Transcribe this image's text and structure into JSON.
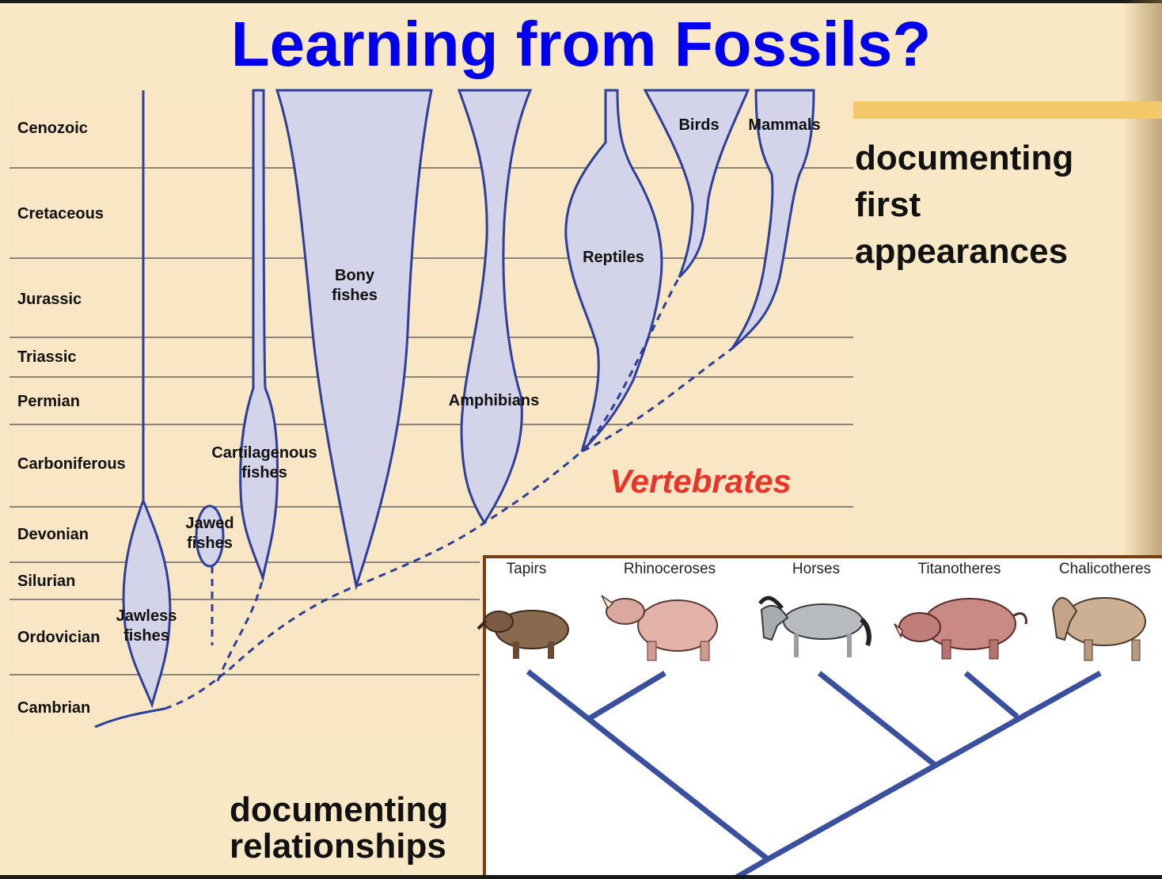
{
  "title": "Learning from Fossils?",
  "captions": {
    "first_appearances": "documenting first appearances",
    "relationships": "documenting relationships"
  },
  "vertebrates_label": "Vertebrates",
  "periods": [
    "Cenozoic",
    "Cretaceous",
    "Jurassic",
    "Triassic",
    "Permian",
    "Carboniferous",
    "Devonian",
    "Silurian",
    "Ordovician",
    "Cambrian"
  ],
  "groups": {
    "jawless": "Jawless fishes",
    "jawed": "Jawed fishes",
    "cartilaginous": "Cartilagenous fishes",
    "bony": "Bony fishes",
    "amphibians": "Amphibians",
    "reptiles": "Reptiles",
    "birds": "Birds",
    "mammals": "Mammals"
  },
  "phylogeny_taxa": [
    "Tapirs",
    "Rhinoceroses",
    "Horses",
    "Titanotheres",
    "Chalicotheres"
  ],
  "colors": {
    "title": "#0000ee",
    "vertebrates": "#e8352a",
    "lineage_fill": "#d3d3ea",
    "lineage_stroke": "#2d3f9a",
    "tree_branch": "#3a4f9e",
    "panel_border": "#7a3d17",
    "accent_bar": "#f3c86a"
  }
}
